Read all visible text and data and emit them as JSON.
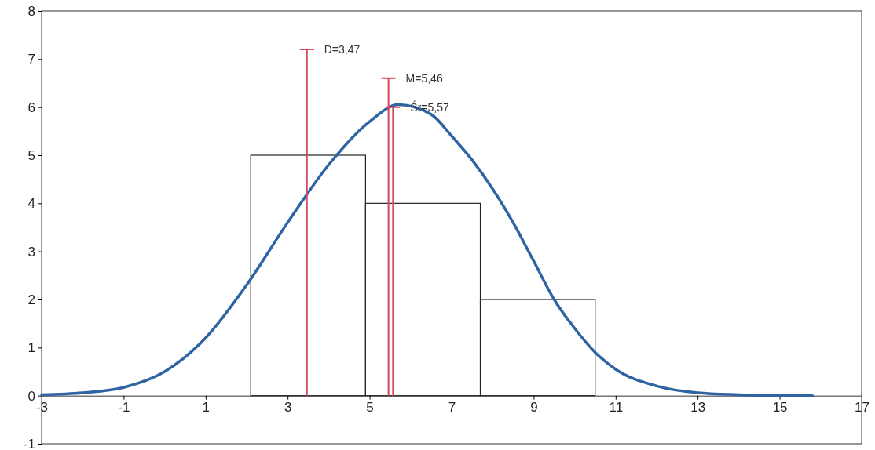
{
  "chart_data": {
    "type": "histogram",
    "series": [
      {
        "bins": [
          2.1,
          4.9,
          7.7,
          10.5
        ],
        "values": [
          5,
          4,
          2
        ],
        "color": "#ffffff"
      },
      {
        "type": "line",
        "color": "#2f64a3",
        "x": [
          -3,
          -2,
          -1,
          0,
          1,
          2,
          3,
          4,
          5,
          5.7,
          6.5,
          7,
          7.5,
          8,
          8.5,
          9,
          9.5,
          10,
          10.5,
          11,
          12,
          13,
          14,
          15,
          15.8
        ],
        "values": [
          0.02,
          0.06,
          0.17,
          0.5,
          1.2,
          2.3,
          3.6,
          4.8,
          5.7,
          6.05,
          5.85,
          5.4,
          4.9,
          4.3,
          3.6,
          2.8,
          2.0,
          1.4,
          0.9,
          0.55,
          0.2,
          0.06,
          0.02,
          0.0,
          0.0
        ]
      },
      {
        "type": "line",
        "name": "D=3,47",
        "color": "#d6455e",
        "x": [
          3.47,
          3.47
        ],
        "values": [
          0,
          7.2
        ]
      },
      {
        "type": "line",
        "name": "M=5,46",
        "color": "#d6455e",
        "x": [
          5.46,
          5.46
        ],
        "values": [
          0,
          6.6
        ]
      },
      {
        "type": "line",
        "name": "Śr=5,57",
        "color": "#d6455e",
        "x": [
          5.57,
          5.57
        ],
        "values": [
          0,
          6.0
        ]
      }
    ],
    "xlim": [
      -3,
      17
    ],
    "xticks": [
      -3,
      -1,
      1,
      3,
      5,
      7,
      9,
      11,
      13,
      15,
      17
    ],
    "ylim": [
      -1,
      8
    ],
    "yticks": [
      -1,
      0,
      1,
      2,
      3,
      4,
      5,
      6,
      7,
      8
    ],
    "grid": false,
    "legend": "top"
  }
}
